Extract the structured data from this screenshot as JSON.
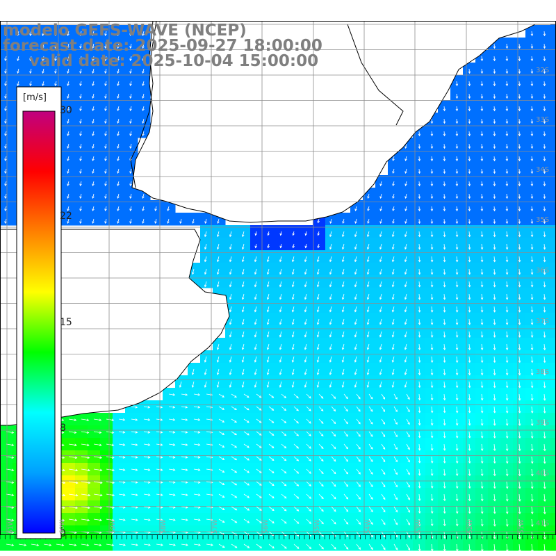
{
  "title": {
    "line1": "modelo GEFS-WAVE (NCEP)",
    "line2": "forecast date: 2025-09-27 18:00:00",
    "line3": "valid date: 2025-10-04 15:00:00"
  },
  "colorbar": {
    "unit": "[m/s]",
    "ticks": [
      "30",
      "22",
      "15",
      "8",
      "0"
    ],
    "range": [
      0,
      30
    ],
    "colors": [
      "#0000ff",
      "#00a0ff",
      "#00ffff",
      "#00ff00",
      "#ffff00",
      "#ff8000",
      "#ff0000",
      "#c00080"
    ]
  },
  "lat_labels": [
    "32S",
    "33S",
    "34S",
    "35S",
    "36S",
    "37S",
    "38S",
    "39S",
    "40S",
    "41S"
  ],
  "lon_labels": [
    "61W",
    "60W",
    "59W",
    "58W",
    "57W",
    "56W",
    "55W",
    "54W",
    "53W",
    "52W",
    "51W"
  ],
  "map_colors": {
    "land": "#ffffff",
    "coast": "#000000",
    "grid": "#8c8c8c",
    "arrow": "#ffffff"
  }
}
